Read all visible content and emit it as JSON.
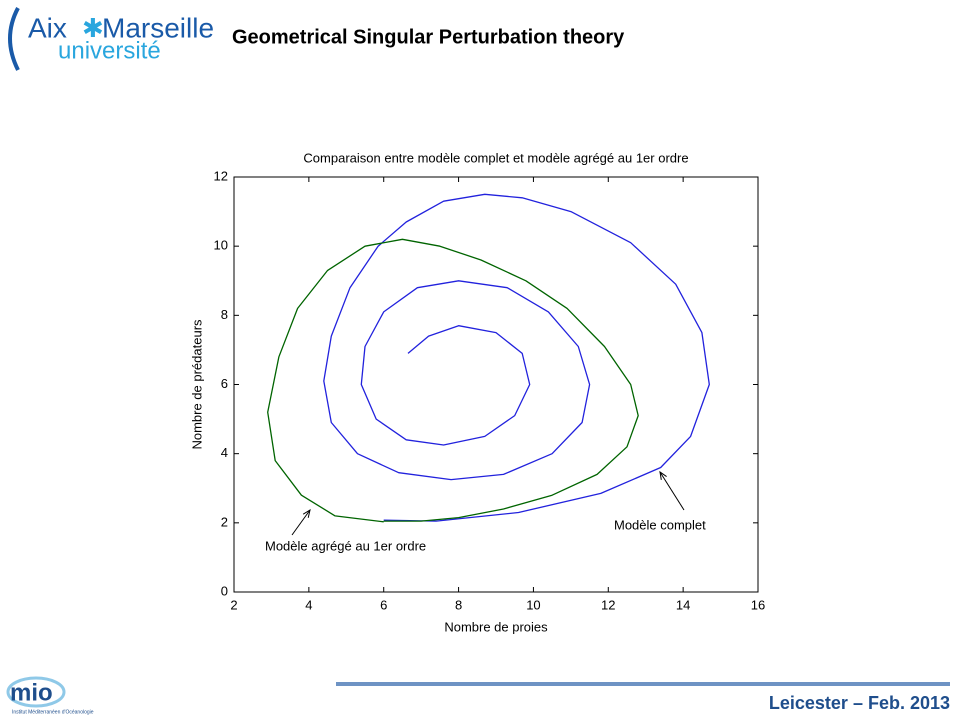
{
  "header": {
    "title": "Geometrical Singular Perturbation theory"
  },
  "logo": {
    "aix": "Aix",
    "marseille": "Marseille",
    "universite": "université"
  },
  "footer": {
    "text": "Leicester – Feb. 2013",
    "mio": "mio",
    "mio_sub": "Institut Méditerranéen d'Océanologie"
  },
  "chart_data": {
    "type": "line",
    "title": "Comparaison entre modèle complet et modèle agrégé au 1er ordre",
    "x_label": "Nombre de proies",
    "y_label": "Nombre de prédateurs",
    "xlim": [
      2,
      16
    ],
    "xticks": [
      2,
      4,
      6,
      8,
      10,
      12,
      14,
      16
    ],
    "ylim": [
      0,
      12
    ],
    "yticks": [
      0,
      2,
      4,
      6,
      8,
      10,
      12
    ],
    "grid": false,
    "series": [
      {
        "name": "Modèle complet",
        "color": "#2222dd",
        "x": [
          6.0,
          7.4,
          9.6,
          11.8,
          13.4,
          14.2,
          14.7,
          14.5,
          13.8,
          12.6,
          11.0,
          9.7,
          8.7,
          7.6,
          6.6,
          5.85,
          5.1,
          4.6,
          4.4,
          4.6,
          5.3,
          6.4,
          7.8,
          9.2,
          10.5,
          11.3,
          11.5,
          11.2,
          10.4,
          9.3,
          8.0,
          6.9,
          6.0,
          5.5,
          5.4,
          5.8,
          6.6,
          7.6,
          8.7,
          9.5,
          9.9,
          9.7,
          9.0,
          8.0,
          7.2,
          6.65
        ],
        "values": [
          2.08,
          2.05,
          2.3,
          2.85,
          3.6,
          4.5,
          6.0,
          7.5,
          8.9,
          10.1,
          11.0,
          11.4,
          11.5,
          11.3,
          10.7,
          10.0,
          8.8,
          7.4,
          6.1,
          4.9,
          4.0,
          3.45,
          3.25,
          3.4,
          4.0,
          4.9,
          6.0,
          7.1,
          8.1,
          8.8,
          9.0,
          8.8,
          8.1,
          7.1,
          6.0,
          5.0,
          4.4,
          4.25,
          4.5,
          5.1,
          6.0,
          6.9,
          7.5,
          7.7,
          7.4,
          6.9
        ]
      },
      {
        "name": "Modèle agrégé au 1er ordre",
        "color": "#006400",
        "x": [
          6.0,
          4.7,
          3.8,
          3.1,
          2.9,
          3.2,
          3.7,
          4.5,
          5.5,
          6.5,
          7.5,
          8.6,
          9.8,
          10.9,
          11.9,
          12.6,
          12.8,
          12.5,
          11.7,
          10.5,
          9.2,
          8.0,
          7.0,
          6.0
        ],
        "values": [
          2.03,
          2.2,
          2.8,
          3.8,
          5.2,
          6.8,
          8.2,
          9.3,
          10.0,
          10.2,
          10.0,
          9.6,
          9.0,
          8.2,
          7.1,
          6.0,
          5.1,
          4.2,
          3.4,
          2.8,
          2.4,
          2.15,
          2.05,
          2.05
        ]
      }
    ]
  }
}
